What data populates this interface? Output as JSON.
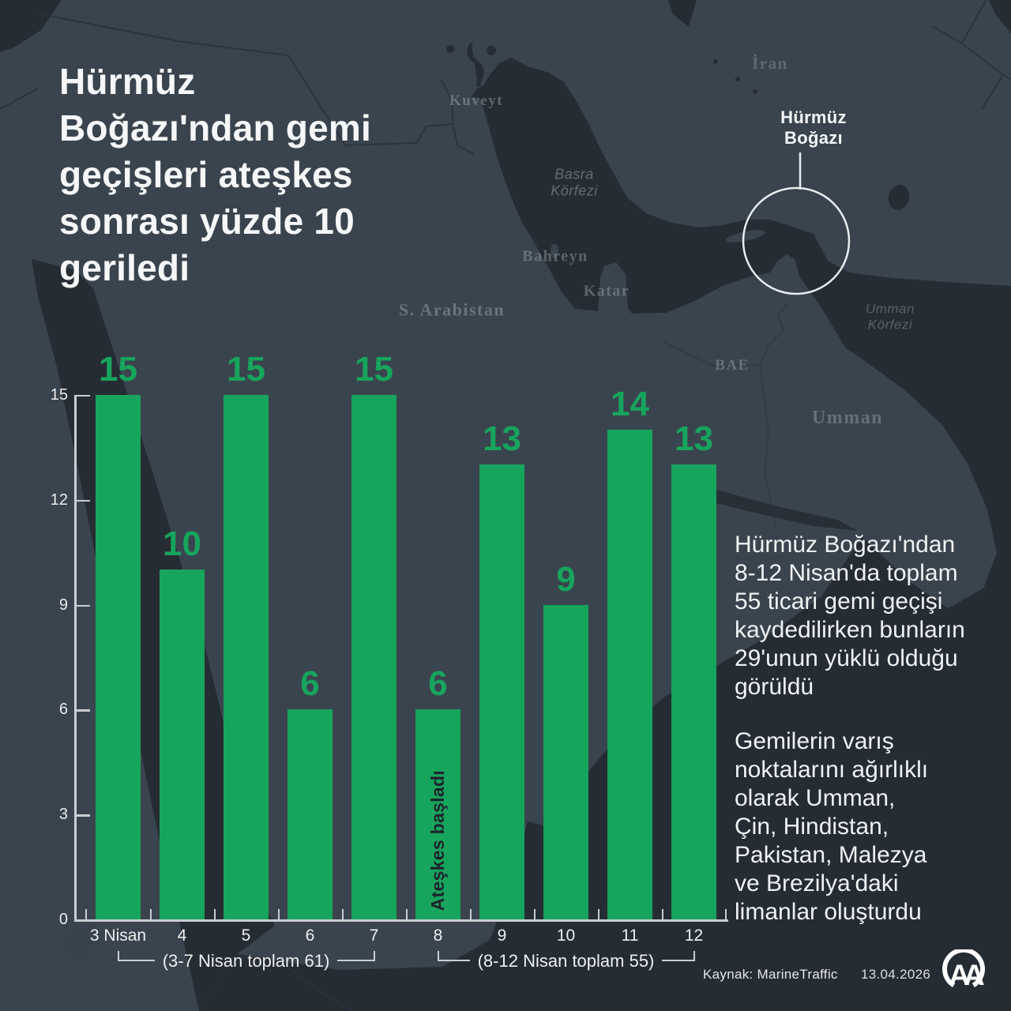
{
  "title": "Hürmüz\nBoğazı'ndan gemi\ngeçişleri ateşkes\nsonrası yüzde 10\ngeriledi",
  "map": {
    "callout": {
      "label": "Hürmüz\nBoğazı"
    },
    "labels": {
      "iran": "İran",
      "kuveyt": "Kuveyt",
      "basra_korfezi": "Basra\nKörfezi",
      "bahreyn": "Bahreyn",
      "katar": "Katar",
      "s_arabistan": "S. Arabistan",
      "bae": "BAE",
      "umman": "Umman",
      "umman_korfezi": "Umman\nKörfezi"
    }
  },
  "chart_data": {
    "type": "bar",
    "categories": [
      "3 Nisan",
      "4",
      "5",
      "6",
      "7",
      "8",
      "9",
      "10",
      "11",
      "12"
    ],
    "values": [
      15,
      10,
      15,
      6,
      15,
      6,
      13,
      9,
      14,
      13
    ],
    "title": "",
    "xlabel": "",
    "ylabel": "",
    "ylim": [
      0,
      15
    ],
    "yticks": [
      0,
      3,
      6,
      9,
      12,
      15
    ],
    "grid": false,
    "legend": false,
    "bar_color": "#17A45C",
    "annotation": {
      "text": "Ateşkes başladı",
      "category_index": 5
    },
    "groups": [
      {
        "label": "(3-7 Nisan toplam 61)",
        "from": 0,
        "to": 4
      },
      {
        "label": "(8-12 Nisan toplam 55)",
        "from": 5,
        "to": 9
      }
    ]
  },
  "info_text": {
    "para1": "Hürmüz Boğazı'ndan\n8-12 Nisan'da toplam\n55 ticari gemi geçişi\nkaydedilirken bunların\n29'unun yüklü olduğu\ngörüldü",
    "para2": "Gemilerin varış\nnoktalarını ağırlıklı\nolarak Umman,\nÇin, Hindistan,\nPakistan, Malezya\nve Brezilya'daki\nlimanlar oluşturdu"
  },
  "footer": {
    "source": "Kaynak: MarineTraffic",
    "date": "13.04.2026",
    "logo_text": "AA"
  },
  "colors": {
    "bar_green": "#17A45C",
    "land": "#3A444E",
    "water": "#262C34",
    "axis": "#C9CED3"
  }
}
